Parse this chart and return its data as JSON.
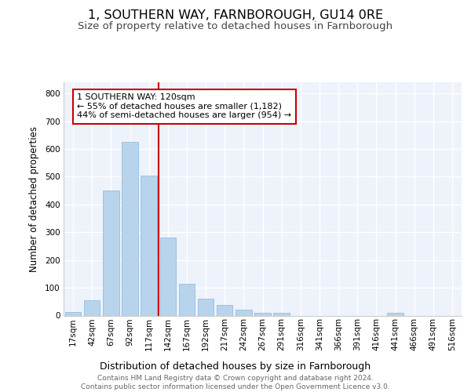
{
  "title": "1, SOUTHERN WAY, FARNBOROUGH, GU14 0RE",
  "subtitle": "Size of property relative to detached houses in Farnborough",
  "xlabel": "Distribution of detached houses by size in Farnborough",
  "ylabel": "Number of detached properties",
  "categories": [
    "17sqm",
    "42sqm",
    "67sqm",
    "92sqm",
    "117sqm",
    "142sqm",
    "167sqm",
    "192sqm",
    "217sqm",
    "242sqm",
    "267sqm",
    "291sqm",
    "316sqm",
    "341sqm",
    "366sqm",
    "391sqm",
    "416sqm",
    "441sqm",
    "466sqm",
    "491sqm",
    "516sqm"
  ],
  "values": [
    12,
    55,
    450,
    625,
    505,
    280,
    115,
    62,
    37,
    22,
    10,
    10,
    0,
    0,
    0,
    0,
    0,
    10,
    0,
    0,
    0
  ],
  "bar_color": "#b8d4ec",
  "bar_edge_color": "#8ab4d8",
  "vline_x_idx": 4.5,
  "vline_color": "#cc0000",
  "annotation_line1": "1 SOUTHERN WAY: 120sqm",
  "annotation_line2": "← 55% of detached houses are smaller (1,182)",
  "annotation_line3": "44% of semi-detached houses are larger (954) →",
  "annotation_box_color": "#cc0000",
  "ylim": [
    0,
    840
  ],
  "yticks": [
    0,
    100,
    200,
    300,
    400,
    500,
    600,
    700,
    800
  ],
  "background_color": "#eef2fb",
  "grid_color": "#ffffff",
  "footer_line1": "Contains HM Land Registry data © Crown copyright and database right 2024.",
  "footer_line2": "Contains public sector information licensed under the Open Government Licence v3.0.",
  "title_fontsize": 11.5,
  "subtitle_fontsize": 9.5,
  "xlabel_fontsize": 9,
  "ylabel_fontsize": 8.5,
  "tick_fontsize": 7.5,
  "annotation_fontsize": 8,
  "footer_fontsize": 6.5
}
